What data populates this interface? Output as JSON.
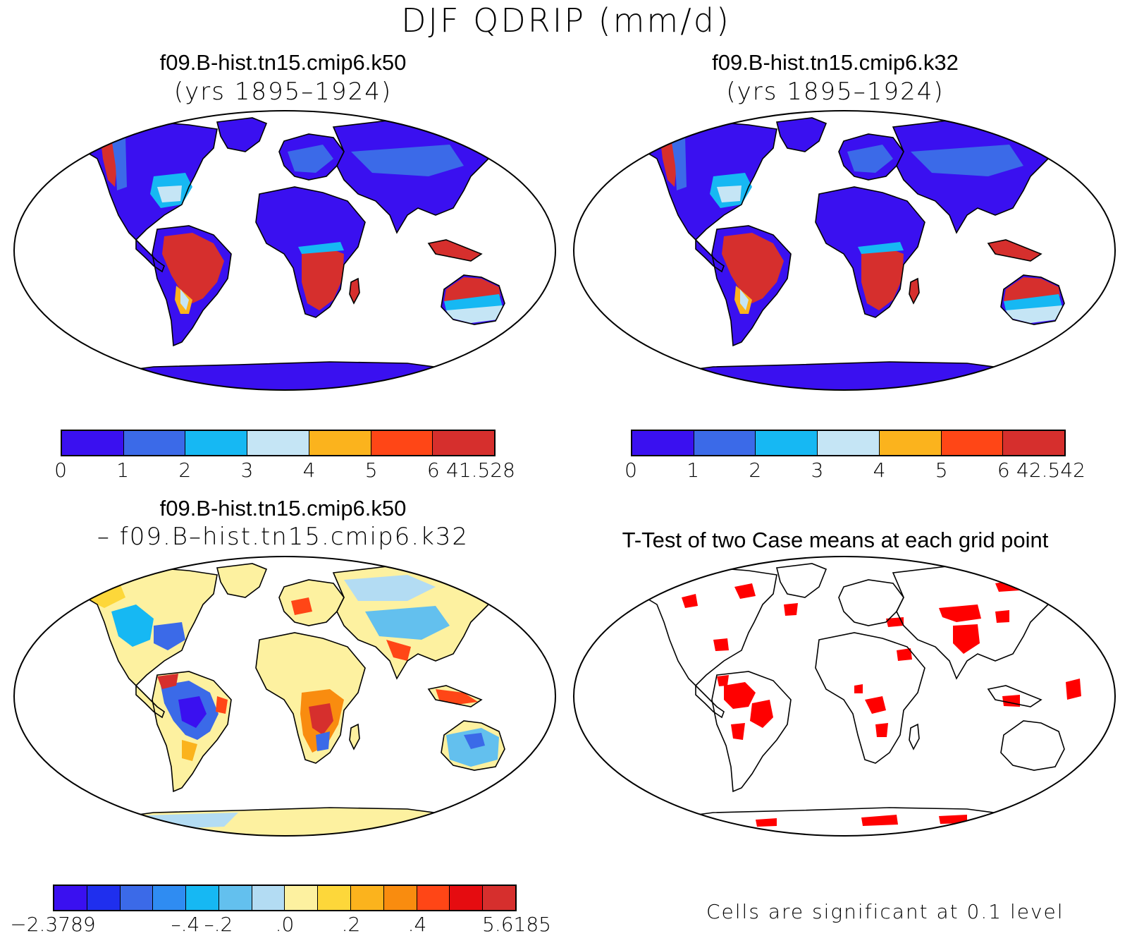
{
  "figure": {
    "title": "DJF QDRIP (mm/d)"
  },
  "panels": [
    {
      "id": "k50",
      "title": "f09.B-hist.tn15.cmip6.k50",
      "subtitle": "(yrs 1895–1924)"
    },
    {
      "id": "k32",
      "title": "f09.B-hist.tn15.cmip6.k32",
      "subtitle": "(yrs 1895–1924)"
    },
    {
      "id": "diff",
      "title": "f09.B-hist.tn15.cmip6.k50",
      "subtitle": "– f09.B–hist.tn15.cmip6.k32"
    },
    {
      "id": "ttest",
      "title": "T-Test of two Case means at each grid point",
      "footnote": "Cells are significant at 0.1 level"
    }
  ],
  "colorbars": {
    "k50": {
      "colors": [
        "#3a10f0",
        "#3b6ae8",
        "#16b8f3",
        "#c5e5f5",
        "#fbb31d",
        "#ff4616",
        "#d62f2d"
      ],
      "labels": [
        "0",
        "1",
        "2",
        "3",
        "4",
        "5",
        "6",
        "41.528"
      ]
    },
    "k32": {
      "colors": [
        "#3a10f0",
        "#3b6ae8",
        "#16b8f3",
        "#c5e5f5",
        "#fbb31d",
        "#ff4616",
        "#d62f2d"
      ],
      "labels": [
        "0",
        "1",
        "2",
        "3",
        "4",
        "5",
        "6",
        "42.542"
      ]
    },
    "diff": {
      "colors": [
        "#3a10f0",
        "#1f2fee",
        "#3b6ae8",
        "#2f8cf2",
        "#16b8f3",
        "#63c0ee",
        "#b3dcf3",
        "#fdf1a0",
        "#fdd73a",
        "#fbb31d",
        "#f98c0f",
        "#ff4616",
        "#e50c10",
        "#d62f2d"
      ],
      "labels": [
        "−2.3789",
        "–.4",
        "–.2",
        ".0",
        ".2",
        ".4",
        "5.6185"
      ],
      "label_boundary_index": [
        0,
        4,
        5,
        7,
        9,
        11,
        14
      ]
    }
  },
  "maps": {
    "k50": {
      "land_base": "#3a10f0",
      "regions": [
        {
          "name": "south-america",
          "color": "#d62f2d"
        },
        {
          "name": "southern-africa",
          "color": "#d62f2d"
        },
        {
          "name": "northern-australia",
          "color": "#d62f2d"
        },
        {
          "name": "maritime-continent",
          "color": "#d62f2d"
        }
      ]
    },
    "k32": {
      "land_base": "#3a10f0",
      "regions": [
        {
          "name": "south-america",
          "color": "#d62f2d"
        },
        {
          "name": "southern-africa",
          "color": "#d62f2d"
        },
        {
          "name": "northern-australia",
          "color": "#d62f2d"
        },
        {
          "name": "maritime-continent",
          "color": "#d62f2d"
        }
      ]
    },
    "diff": {
      "land_base": "#fdf1a0"
    },
    "ttest": {
      "land_base": "#ffffff",
      "signif_color": "#ff0000"
    }
  }
}
